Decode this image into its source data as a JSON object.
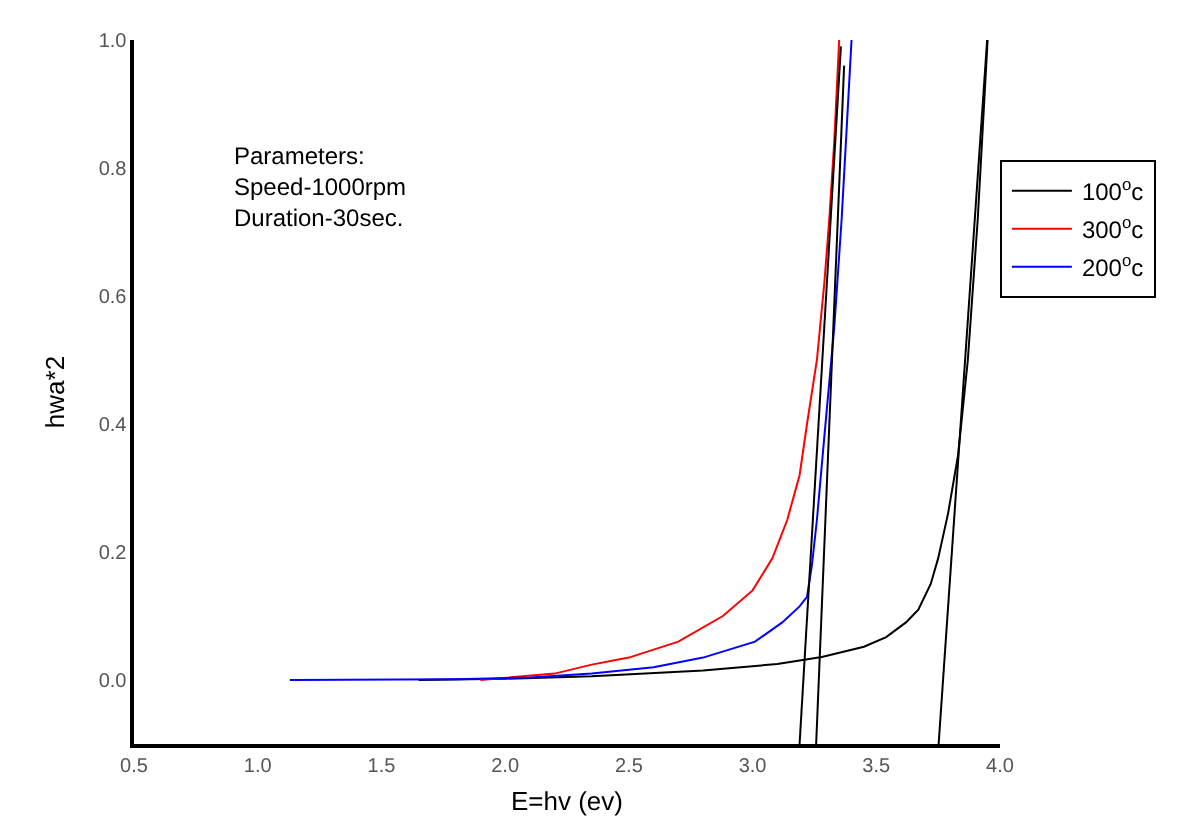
{
  "chart_data": {
    "type": "line",
    "xlabel": "E=hv (ev)",
    "ylabel": "hwa*2",
    "annotations": [
      "Parameters:\nSpeed-1000rpm\nDuration-30sec."
    ],
    "series": [
      {
        "name": "100$^{o}$c",
        "color": "#000000",
        "x": [
          1.65,
          2.0,
          2.35,
          2.8,
          3.1,
          3.28,
          3.45,
          3.54,
          3.62,
          3.67,
          3.72,
          3.75,
          3.79,
          3.83,
          3.87,
          3.91,
          3.95
        ],
        "values": [
          0.0,
          0.002,
          0.006,
          0.015,
          0.025,
          0.036,
          0.052,
          0.067,
          0.09,
          0.11,
          0.15,
          0.19,
          0.26,
          0.35,
          0.5,
          0.72,
          1.0
        ]
      },
      {
        "name": "300$^{o}$c",
        "color": "#ff0000",
        "x": [
          1.9,
          2.2,
          2.35,
          2.5,
          2.7,
          2.88,
          3.0,
          3.08,
          3.14,
          3.19,
          3.22,
          3.26,
          3.29,
          3.31,
          3.33,
          3.35
        ],
        "values": [
          0.0,
          0.01,
          0.024,
          0.035,
          0.06,
          0.1,
          0.14,
          0.19,
          0.25,
          0.32,
          0.4,
          0.5,
          0.62,
          0.72,
          0.84,
          1.0
        ]
      },
      {
        "name": "200$^{o}$c",
        "color": "#0000ff",
        "x": [
          1.13,
          1.8,
          2.1,
          2.35,
          2.6,
          2.8,
          3.01,
          3.12,
          3.19,
          3.22,
          3.24,
          3.26,
          3.29,
          3.33,
          3.36,
          3.38,
          3.4
        ],
        "values": [
          0.0,
          0.001,
          0.004,
          0.01,
          0.02,
          0.035,
          0.06,
          0.09,
          0.115,
          0.13,
          0.18,
          0.25,
          0.38,
          0.55,
          0.72,
          0.86,
          1.0
        ]
      },
      {
        "color": "#000000",
        "x": [
          3.19,
          3.357
        ],
        "values": [
          -0.1,
          0.99
        ]
      },
      {
        "color": "#000000",
        "x": [
          3.257,
          3.37
        ],
        "values": [
          -0.1,
          0.96
        ]
      },
      {
        "color": "#000000",
        "x": [
          3.752,
          3.948
        ],
        "values": [
          -0.1,
          1.0
        ]
      }
    ],
    "xlim": [
      0.5,
      4.0
    ],
    "ylim": [
      -0.1,
      1.0
    ],
    "xticks": [
      0.5,
      {
        "value": 1,
        "label": "1.0"
      },
      1.5,
      {
        "value": 2,
        "label": "2.0"
      },
      2.5,
      {
        "value": 3,
        "label": "3.0"
      },
      3.5,
      {
        "value": 4,
        "label": "4.0"
      }
    ],
    "yticks": [
      {
        "value": 0,
        "label": "0.0"
      },
      0.2,
      0.4,
      0.6,
      0.8,
      {
        "value": 1,
        "label": "1.0"
      }
    ],
    "legend": "right",
    "line_style": "solid",
    "marker": "none"
  }
}
